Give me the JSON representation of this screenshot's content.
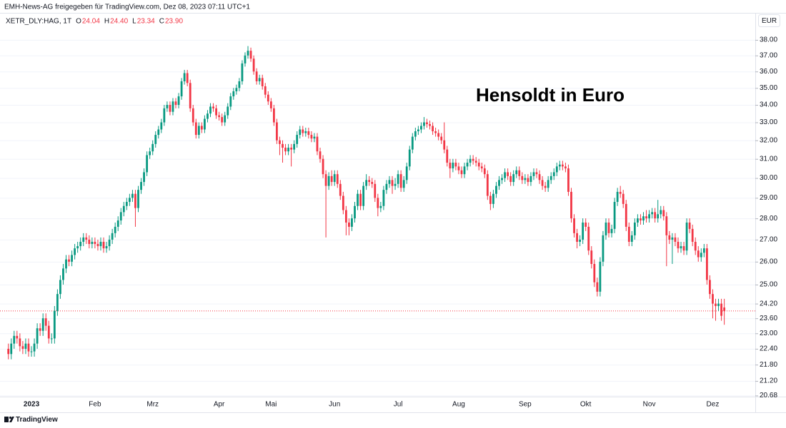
{
  "chart_data": {
    "type": "candlestick",
    "attribution": "EMH-News-AG freigegeben für TradingView.com, Dez 08, 2023 07:11 UTC+1",
    "symbol": "XETR_DLY:HAG, 1T",
    "ohlc_legend": [
      {
        "key": "O",
        "value": 24.04
      },
      {
        "key": "H",
        "value": 24.4,
        "label": "24.40"
      },
      {
        "key": "L",
        "value": 23.34
      },
      {
        "key": "C",
        "value": 23.9,
        "label": "23.90"
      }
    ],
    "currency": "EUR",
    "annotation": "Hensoldt in Euro",
    "brand": "TradingView",
    "up_color": "#089981",
    "down_color": "#f23645",
    "log_scale": true,
    "grid": true,
    "last_price_line": true,
    "ylim": [
      20.64,
      39.8
    ],
    "yticks": [
      {
        "value": 38,
        "label": "38.00"
      },
      {
        "value": 37,
        "label": "37.00"
      },
      {
        "value": 36,
        "label": "36.00"
      },
      {
        "value": 35,
        "label": "35.00"
      },
      {
        "value": 34,
        "label": "34.00"
      },
      {
        "value": 33,
        "label": "33.00"
      },
      {
        "value": 32,
        "label": "32.00"
      },
      {
        "value": 31,
        "label": "31.00"
      },
      {
        "value": 30,
        "label": "30.00"
      },
      {
        "value": 29,
        "label": "29.00"
      },
      {
        "value": 28,
        "label": "28.00"
      },
      {
        "value": 27,
        "label": "27.00"
      },
      {
        "value": 26,
        "label": "26.00"
      },
      {
        "value": 25,
        "label": "25.00"
      },
      {
        "value": 24.2,
        "label": "24.20"
      },
      {
        "value": 23.6,
        "label": "23.60"
      },
      {
        "value": 23,
        "label": "23.00"
      },
      {
        "value": 22.4,
        "label": "22.40"
      },
      {
        "value": 21.8,
        "label": "21.80"
      },
      {
        "value": 21.2,
        "label": "21.20"
      },
      20.68
    ],
    "categories": [
      null,
      null,
      null,
      null,
      null,
      null,
      null,
      null,
      "2023",
      null,
      null,
      null,
      null,
      null,
      null,
      null,
      null,
      null,
      null,
      null,
      null,
      null,
      null,
      null,
      null,
      null,
      null,
      null,
      null,
      null,
      "Feb",
      null,
      null,
      null,
      null,
      null,
      null,
      null,
      null,
      null,
      null,
      null,
      null,
      null,
      null,
      null,
      null,
      null,
      null,
      null,
      "Mrz",
      null,
      null,
      null,
      null,
      null,
      null,
      null,
      null,
      null,
      null,
      null,
      null,
      null,
      null,
      null,
      null,
      null,
      null,
      null,
      null,
      null,
      null,
      "Apr",
      null,
      null,
      null,
      null,
      null,
      null,
      null,
      null,
      null,
      null,
      null,
      null,
      null,
      null,
      null,
      null,
      null,
      "Mai",
      null,
      null,
      null,
      null,
      null,
      null,
      null,
      null,
      null,
      null,
      null,
      null,
      null,
      null,
      null,
      null,
      null,
      null,
      null,
      null,
      null,
      "Jun",
      null,
      null,
      null,
      null,
      null,
      null,
      null,
      null,
      null,
      null,
      null,
      null,
      null,
      null,
      null,
      null,
      null,
      null,
      null,
      null,
      null,
      "Jul",
      null,
      null,
      null,
      null,
      null,
      null,
      null,
      null,
      null,
      null,
      null,
      null,
      null,
      null,
      null,
      null,
      null,
      null,
      null,
      null,
      "Aug",
      null,
      null,
      null,
      null,
      null,
      null,
      null,
      null,
      null,
      null,
      null,
      null,
      null,
      null,
      null,
      null,
      null,
      null,
      null,
      null,
      null,
      null,
      "Sep",
      null,
      null,
      null,
      null,
      null,
      null,
      null,
      null,
      null,
      null,
      null,
      null,
      null,
      null,
      null,
      null,
      null,
      null,
      null,
      null,
      "Okt",
      null,
      null,
      null,
      null,
      null,
      null,
      null,
      null,
      null,
      null,
      null,
      null,
      null,
      null,
      null,
      null,
      null,
      null,
      null,
      null,
      null,
      "Nov",
      null,
      null,
      null,
      null,
      null,
      null,
      null,
      null,
      null,
      null,
      null,
      null,
      null,
      null,
      null,
      null,
      null,
      null,
      null,
      null,
      null,
      "Dez",
      null,
      null,
      null,
      null
    ],
    "open": [
      22.4,
      22.2,
      22.6,
      22.9,
      22.8,
      22.5,
      22.4,
      22.6,
      22.3,
      22.3,
      22.6,
      23.2,
      23.1,
      23.6,
      23.3,
      22.8,
      22.8,
      23.9,
      24.6,
      25.2,
      25.7,
      26.1,
      26.0,
      26.3,
      26.6,
      26.7,
      26.9,
      27.1,
      27.0,
      26.8,
      26.9,
      26.8,
      26.7,
      26.9,
      26.6,
      26.7,
      27.0,
      27.3,
      27.6,
      27.9,
      28.3,
      28.6,
      28.8,
      29.0,
      29.2,
      28.5,
      29.4,
      29.8,
      30.3,
      31.2,
      31.4,
      31.8,
      32.3,
      32.6,
      33.0,
      33.8,
      34.0,
      33.6,
      34.2,
      34.0,
      34.5,
      35.4,
      35.9,
      35.3,
      33.8,
      33.0,
      32.3,
      32.8,
      32.6,
      33.2,
      33.5,
      33.9,
      33.8,
      33.4,
      33.3,
      33.0,
      33.4,
      33.9,
      34.5,
      34.8,
      35.0,
      35.4,
      36.5,
      37.0,
      37.3,
      36.8,
      36.0,
      35.4,
      35.6,
      35.1,
      34.6,
      34.2,
      33.8,
      33.0,
      32.0,
      31.8,
      31.6,
      31.4,
      31.6,
      31.5,
      31.8,
      32.3,
      32.6,
      32.4,
      32.5,
      32.3,
      32.1,
      32.2,
      31.4,
      31.0,
      30.2,
      29.6,
      30.1,
      29.8,
      30.2,
      29.7,
      29.1,
      28.4,
      27.8,
      27.6,
      28.0,
      28.6,
      29.2,
      28.6,
      29.6,
      29.9,
      29.8,
      29.7,
      29.0,
      28.5,
      28.6,
      29.4,
      29.7,
      29.9,
      29.6,
      29.7,
      30.2,
      29.5,
      29.9,
      30.6,
      31.5,
      32.2,
      32.5,
      32.6,
      32.8,
      33.0,
      32.9,
      32.8,
      32.5,
      32.4,
      32.2,
      32.0,
      31.5,
      30.8,
      30.5,
      30.8,
      30.6,
      30.4,
      30.2,
      30.6,
      30.8,
      31.0,
      30.9,
      30.8,
      30.6,
      30.5,
      30.2,
      29.1,
      28.7,
      29.2,
      29.6,
      29.9,
      30.0,
      30.3,
      30.1,
      29.8,
      30.2,
      30.4,
      30.1,
      29.9,
      30.0,
      29.8,
      30.1,
      30.3,
      30.2,
      29.9,
      29.6,
      29.5,
      29.9,
      30.1,
      30.3,
      30.6,
      30.7,
      30.6,
      30.5,
      29.3,
      28.0,
      27.3,
      26.9,
      27.0,
      27.8,
      27.6,
      26.5,
      25.9,
      25.1,
      24.7,
      26.0,
      27.2,
      27.8,
      27.3,
      27.5,
      28.8,
      29.3,
      29.2,
      28.7,
      27.6,
      26.9,
      27.2,
      27.8,
      28.0,
      27.9,
      28.1,
      28.0,
      28.2,
      28.3,
      28.0,
      28.2,
      28.4,
      28.1,
      27.2,
      27.0,
      27.1,
      26.9,
      26.6,
      26.7,
      26.5,
      27.8,
      27.5,
      26.9,
      26.5,
      26.2,
      26.4,
      26.6,
      25.2,
      24.6,
      24.2,
      24.1,
      24.2,
      24.04
    ],
    "high": [
      22.6,
      22.8,
      23.1,
      23.1,
      23.0,
      22.7,
      22.8,
      22.8,
      22.5,
      22.8,
      23.4,
      23.4,
      23.8,
      23.8,
      23.5,
      23.0,
      24.1,
      24.8,
      25.4,
      25.9,
      26.3,
      26.3,
      26.5,
      26.8,
      26.9,
      27.1,
      27.3,
      27.3,
      27.2,
      27.1,
      27.1,
      27.0,
      27.1,
      27.1,
      26.9,
      27.2,
      27.5,
      27.8,
      28.1,
      28.5,
      28.8,
      29.0,
      29.2,
      29.4,
      29.4,
      29.6,
      30.0,
      30.5,
      31.4,
      31.6,
      32.0,
      32.5,
      32.8,
      33.2,
      34.0,
      34.2,
      34.2,
      34.4,
      34.4,
      34.7,
      35.6,
      36.1,
      36.1,
      35.5,
      34.0,
      33.2,
      33.0,
      33.0,
      33.4,
      33.7,
      34.1,
      34.1,
      34.0,
      33.6,
      33.5,
      33.6,
      34.1,
      34.7,
      35.0,
      35.2,
      35.6,
      36.7,
      37.2,
      37.6,
      37.5,
      37.0,
      36.2,
      35.8,
      35.8,
      35.3,
      34.8,
      34.4,
      34.0,
      33.2,
      32.2,
      32.0,
      31.8,
      31.8,
      31.8,
      32.0,
      32.5,
      32.8,
      32.8,
      32.7,
      32.7,
      32.5,
      32.4,
      32.4,
      31.6,
      31.2,
      30.4,
      30.3,
      30.4,
      30.4,
      30.4,
      29.9,
      29.3,
      28.6,
      28.0,
      28.2,
      28.8,
      29.4,
      29.4,
      29.8,
      30.2,
      30.1,
      30.0,
      29.9,
      29.2,
      28.8,
      29.6,
      29.9,
      30.1,
      30.1,
      30.0,
      30.4,
      30.4,
      30.1,
      30.8,
      31.7,
      32.4,
      32.7,
      32.8,
      33.0,
      33.3,
      33.2,
      33.1,
      33.0,
      32.7,
      32.6,
      32.4,
      33.0,
      31.7,
      31.0,
      31.0,
      31.0,
      30.8,
      30.6,
      30.8,
      31.0,
      31.2,
      31.2,
      31.1,
      31.0,
      30.8,
      30.7,
      30.4,
      29.3,
      29.4,
      29.8,
      30.1,
      30.2,
      30.5,
      30.5,
      30.3,
      30.4,
      30.6,
      30.6,
      30.3,
      30.2,
      30.2,
      30.3,
      30.5,
      30.5,
      30.4,
      30.1,
      29.8,
      30.1,
      30.3,
      30.5,
      30.8,
      30.9,
      30.9,
      30.8,
      30.7,
      29.5,
      28.2,
      27.5,
      27.2,
      28.0,
      28.0,
      27.8,
      26.7,
      26.1,
      25.3,
      26.2,
      27.4,
      28.0,
      28.0,
      27.7,
      29.0,
      29.5,
      29.6,
      29.4,
      28.9,
      27.8,
      27.4,
      28.0,
      28.2,
      28.2,
      28.3,
      28.4,
      28.4,
      28.5,
      28.5,
      28.9,
      28.6,
      28.6,
      28.3,
      27.4,
      27.3,
      27.3,
      27.1,
      26.9,
      26.9,
      28.0,
      28.0,
      27.7,
      27.1,
      26.7,
      26.6,
      26.8,
      26.8,
      25.4,
      24.8,
      24.4,
      24.4,
      24.4,
      24.4
    ],
    "low": [
      22.0,
      22.0,
      22.4,
      22.6,
      22.3,
      22.2,
      22.2,
      22.1,
      22.1,
      22.1,
      22.4,
      22.9,
      22.9,
      23.1,
      22.6,
      22.6,
      22.6,
      23.7,
      24.4,
      25.0,
      25.5,
      25.8,
      25.8,
      26.1,
      26.4,
      26.5,
      26.7,
      26.8,
      26.6,
      26.6,
      26.6,
      26.5,
      26.5,
      26.4,
      26.4,
      26.5,
      26.8,
      27.1,
      27.4,
      27.7,
      28.1,
      28.4,
      28.6,
      28.8,
      27.6,
      28.3,
      29.2,
      29.6,
      30.1,
      31.0,
      31.2,
      31.6,
      32.1,
      32.4,
      32.8,
      33.6,
      33.4,
      33.4,
      33.8,
      33.8,
      34.3,
      35.2,
      35.1,
      33.6,
      32.8,
      32.1,
      32.1,
      32.4,
      32.4,
      33.0,
      33.3,
      33.6,
      33.2,
      33.1,
      32.8,
      32.8,
      33.2,
      33.7,
      34.3,
      34.6,
      34.8,
      35.2,
      36.3,
      36.8,
      36.6,
      35.8,
      35.2,
      35.2,
      34.9,
      34.4,
      34.0,
      33.6,
      32.8,
      31.8,
      31.2,
      30.8,
      31.2,
      31.2,
      30.6,
      31.3,
      31.6,
      32.1,
      32.2,
      32.2,
      32.1,
      31.9,
      31.9,
      31.2,
      30.8,
      30.0,
      27.1,
      29.4,
      29.6,
      29.6,
      29.5,
      28.9,
      28.2,
      27.2,
      27.2,
      27.4,
      27.8,
      28.4,
      28.4,
      28.4,
      29.4,
      29.6,
      29.5,
      28.8,
      28.1,
      28.3,
      28.4,
      29.2,
      29.5,
      29.2,
      29.4,
      29.5,
      29.3,
      29.3,
      29.7,
      30.4,
      31.3,
      32.0,
      32.3,
      32.4,
      32.6,
      32.7,
      32.6,
      32.3,
      32.2,
      32.0,
      31.8,
      31.3,
      30.6,
      30.0,
      30.3,
      30.4,
      30.2,
      30.0,
      30.0,
      30.4,
      30.6,
      30.7,
      30.6,
      30.4,
      30.3,
      30.0,
      28.9,
      28.4,
      28.5,
      29.0,
      29.4,
      29.7,
      29.8,
      29.9,
      29.6,
      29.6,
      30.0,
      29.9,
      29.7,
      29.7,
      29.6,
      29.6,
      29.9,
      30.0,
      29.7,
      29.4,
      29.3,
      29.3,
      29.7,
      29.9,
      30.1,
      30.4,
      30.4,
      30.3,
      29.1,
      27.8,
      27.1,
      26.6,
      26.7,
      26.8,
      27.4,
      26.3,
      25.7,
      24.9,
      24.5,
      24.5,
      25.8,
      27.0,
      27.1,
      27.1,
      27.3,
      28.6,
      29.0,
      28.5,
      27.4,
      26.7,
      26.7,
      27.0,
      27.6,
      27.7,
      27.7,
      27.8,
      27.8,
      28.0,
      27.8,
      27.8,
      28.0,
      27.9,
      25.8,
      26.8,
      25.9,
      26.7,
      26.4,
      26.4,
      26.3,
      26.3,
      27.3,
      26.7,
      26.3,
      26.0,
      26.0,
      26.2,
      25.0,
      24.4,
      23.6,
      23.5,
      23.9,
      23.5,
      23.34
    ],
    "close": [
      22.2,
      22.6,
      22.9,
      22.8,
      22.5,
      22.4,
      22.6,
      22.3,
      22.3,
      22.6,
      23.2,
      23.1,
      23.6,
      23.3,
      22.8,
      22.8,
      23.9,
      24.6,
      25.2,
      25.7,
      26.1,
      26.0,
      26.3,
      26.6,
      26.7,
      26.9,
      27.1,
      27.0,
      26.8,
      26.9,
      26.8,
      26.7,
      26.9,
      26.6,
      26.7,
      27.0,
      27.3,
      27.6,
      27.9,
      28.3,
      28.6,
      28.8,
      29.0,
      29.2,
      28.5,
      29.4,
      29.8,
      30.3,
      31.2,
      31.4,
      31.8,
      32.3,
      32.6,
      33.0,
      33.8,
      34.0,
      33.6,
      34.2,
      34.0,
      34.5,
      35.4,
      35.9,
      35.3,
      33.8,
      33.0,
      32.3,
      32.8,
      32.6,
      33.2,
      33.5,
      33.9,
      33.8,
      33.4,
      33.3,
      33.0,
      33.4,
      33.9,
      34.5,
      34.8,
      35.0,
      35.4,
      36.5,
      37.0,
      37.3,
      36.8,
      36.0,
      35.4,
      35.6,
      35.1,
      34.6,
      34.2,
      33.8,
      33.0,
      32.0,
      31.8,
      31.6,
      31.4,
      31.6,
      31.5,
      31.8,
      32.3,
      32.6,
      32.4,
      32.5,
      32.3,
      32.1,
      32.2,
      31.4,
      31.0,
      30.2,
      29.6,
      30.1,
      29.8,
      30.2,
      29.7,
      29.1,
      28.4,
      27.8,
      27.6,
      28.0,
      28.6,
      29.2,
      28.6,
      29.6,
      29.9,
      29.8,
      29.7,
      29.0,
      28.5,
      28.6,
      29.4,
      29.7,
      29.9,
      29.6,
      29.7,
      30.2,
      29.5,
      29.9,
      30.6,
      31.5,
      32.2,
      32.5,
      32.6,
      32.8,
      33.0,
      32.9,
      32.8,
      32.5,
      32.4,
      32.2,
      32.0,
      31.5,
      30.8,
      30.5,
      30.8,
      30.6,
      30.4,
      30.2,
      30.6,
      30.8,
      31.0,
      30.9,
      30.8,
      30.6,
      30.5,
      30.2,
      29.1,
      28.7,
      29.2,
      29.6,
      29.9,
      30.0,
      30.3,
      30.1,
      29.8,
      30.2,
      30.4,
      30.1,
      29.9,
      30.0,
      29.8,
      30.1,
      30.3,
      30.2,
      29.9,
      29.6,
      29.5,
      29.9,
      30.1,
      30.3,
      30.6,
      30.7,
      30.6,
      30.5,
      29.3,
      28.0,
      27.3,
      26.9,
      27.0,
      27.8,
      27.6,
      26.5,
      25.9,
      25.1,
      24.7,
      26.0,
      27.2,
      27.8,
      27.3,
      27.5,
      28.8,
      29.3,
      29.2,
      28.7,
      27.6,
      26.9,
      27.2,
      27.8,
      28.0,
      27.9,
      28.1,
      28.0,
      28.2,
      28.3,
      28.0,
      28.2,
      28.4,
      28.1,
      27.2,
      27.0,
      27.1,
      26.9,
      26.6,
      26.7,
      26.5,
      27.8,
      27.5,
      26.9,
      26.5,
      26.2,
      26.4,
      26.6,
      25.2,
      24.6,
      24.2,
      24.1,
      24.2,
      23.7,
      23.9
    ]
  }
}
